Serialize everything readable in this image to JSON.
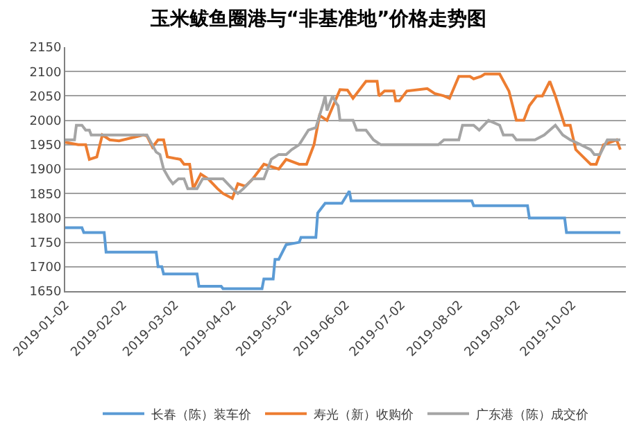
{
  "chart_data": {
    "type": "line",
    "title": "玉米鲅鱼圈港与“非基准地”价格走势图",
    "series": [
      {
        "name": "长春（陈）装车价",
        "color": "#5b9bd5",
        "x": [
          "2019-01-02",
          "2019-01-11",
          "2019-01-12",
          "2019-01-23",
          "2019-01-24",
          "2019-02-20",
          "2019-02-21",
          "2019-02-23",
          "2019-02-24",
          "2019-03-14",
          "2019-03-15",
          "2019-03-27",
          "2019-03-28",
          "2019-04-18",
          "2019-04-19",
          "2019-04-24",
          "2019-04-25",
          "2019-04-27",
          "2019-05-01",
          "2019-05-08",
          "2019-05-09",
          "2019-05-17",
          "2019-05-18",
          "2019-05-20",
          "2019-05-22",
          "2019-05-31",
          "2019-06-04",
          "2019-06-05",
          "2019-08-09",
          "2019-08-10",
          "2019-09-08",
          "2019-09-09",
          "2019-09-28",
          "2019-09-29",
          "2019-10-28"
        ],
        "values": [
          1780,
          1780,
          1770,
          1770,
          1730,
          1730,
          1700,
          1700,
          1685,
          1685,
          1660,
          1660,
          1655,
          1655,
          1675,
          1675,
          1715,
          1715,
          1745,
          1750,
          1760,
          1760,
          1810,
          1820,
          1830,
          1830,
          1855,
          1835,
          1835,
          1825,
          1825,
          1800,
          1800,
          1770,
          1770
        ]
      },
      {
        "name": "寿光（新）收购价",
        "color": "#ed7d31",
        "x": [
          "2019-01-02",
          "2019-01-09",
          "2019-01-13",
          "2019-01-15",
          "2019-01-19",
          "2019-01-22",
          "2019-01-26",
          "2019-01-31",
          "2019-02-13",
          "2019-02-15",
          "2019-02-18",
          "2019-02-21",
          "2019-02-24",
          "2019-02-26",
          "2019-03-05",
          "2019-03-07",
          "2019-03-10",
          "2019-03-12",
          "2019-03-16",
          "2019-03-20",
          "2019-03-25",
          "2019-03-28",
          "2019-04-02",
          "2019-04-05",
          "2019-04-09",
          "2019-04-13",
          "2019-04-19",
          "2019-04-27",
          "2019-05-01",
          "2019-05-08",
          "2019-05-12",
          "2019-05-16",
          "2019-05-19",
          "2019-05-23",
          "2019-05-30",
          "2019-06-03",
          "2019-06-06",
          "2019-06-13",
          "2019-06-19",
          "2019-06-20",
          "2019-06-23",
          "2019-06-28",
          "2019-06-29",
          "2019-07-01",
          "2019-07-05",
          "2019-07-16",
          "2019-07-20",
          "2019-07-25",
          "2019-07-28",
          "2019-08-02",
          "2019-08-08",
          "2019-08-10",
          "2019-08-14",
          "2019-08-16",
          "2019-08-24",
          "2019-08-29",
          "2019-09-02",
          "2019-09-06",
          "2019-09-09",
          "2019-09-13",
          "2019-09-16",
          "2019-09-20",
          "2019-09-23",
          "2019-09-28",
          "2019-10-01",
          "2019-10-04",
          "2019-10-12",
          "2019-10-15",
          "2019-10-19",
          "2019-10-26",
          "2019-10-28"
        ],
        "values": [
          1955,
          1950,
          1950,
          1920,
          1925,
          1970,
          1960,
          1958,
          1970,
          1968,
          1945,
          1960,
          1960,
          1925,
          1920,
          1910,
          1910,
          1860,
          1890,
          1880,
          1860,
          1850,
          1840,
          1870,
          1865,
          1880,
          1910,
          1900,
          1920,
          1910,
          1910,
          1950,
          2010,
          2000,
          2063,
          2062,
          2045,
          2080,
          2080,
          2050,
          2060,
          2060,
          2040,
          2040,
          2060,
          2065,
          2055,
          2050,
          2045,
          2090,
          2090,
          2085,
          2090,
          2095,
          2095,
          2060,
          2000,
          2000,
          2030,
          2050,
          2050,
          2080,
          2050,
          1990,
          1990,
          1940,
          1910,
          1910,
          1950,
          1960,
          1940
        ]
      },
      {
        "name": "广东港（陈）成交价",
        "color": "#a5a5a5",
        "x": [
          "2019-01-02",
          "2019-01-07",
          "2019-01-08",
          "2019-01-11",
          "2019-01-13",
          "2019-01-15",
          "2019-01-16",
          "2019-02-15",
          "2019-02-20",
          "2019-02-22",
          "2019-02-24",
          "2019-02-27",
          "2019-03-01",
          "2019-03-04",
          "2019-03-07",
          "2019-03-09",
          "2019-03-14",
          "2019-03-17",
          "2019-03-28",
          "2019-04-02",
          "2019-04-05",
          "2019-04-08",
          "2019-04-13",
          "2019-04-19",
          "2019-04-23",
          "2019-04-27",
          "2019-05-01",
          "2019-05-04",
          "2019-05-08",
          "2019-05-13",
          "2019-05-17",
          "2019-05-21",
          "2019-05-22",
          "2019-05-23",
          "2019-05-26",
          "2019-05-28",
          "2019-05-29",
          "2019-05-30",
          "2019-06-06",
          "2019-06-08",
          "2019-06-13",
          "2019-06-17",
          "2019-06-21",
          "2019-07-22",
          "2019-07-25",
          "2019-08-02",
          "2019-08-04",
          "2019-08-10",
          "2019-08-13",
          "2019-08-18",
          "2019-08-24",
          "2019-08-26",
          "2019-08-31",
          "2019-09-02",
          "2019-09-12",
          "2019-09-17",
          "2019-09-23",
          "2019-09-27",
          "2019-10-01",
          "2019-10-04",
          "2019-10-12",
          "2019-10-14",
          "2019-10-17",
          "2019-10-21",
          "2019-10-28"
        ],
        "values": [
          1960,
          1960,
          1990,
          1990,
          1980,
          1980,
          1970,
          1970,
          1935,
          1930,
          1900,
          1880,
          1870,
          1880,
          1880,
          1860,
          1860,
          1880,
          1880,
          1860,
          1850,
          1860,
          1880,
          1880,
          1920,
          1930,
          1930,
          1940,
          1950,
          1980,
          1985,
          2035,
          2050,
          2020,
          2050,
          2035,
          2030,
          2000,
          2000,
          1980,
          1980,
          1960,
          1950,
          1950,
          1960,
          1960,
          1990,
          1990,
          1980,
          2000,
          1990,
          1970,
          1970,
          1960,
          1960,
          1970,
          1990,
          1970,
          1960,
          1955,
          1940,
          1930,
          1930,
          1960,
          1960
        ]
      }
    ],
    "xlim": [
      "2019-01-02",
      "2019-10-31"
    ],
    "xticks": [
      "2019-01-02",
      "2019-02-02",
      "2019-03-02",
      "2019-04-02",
      "2019-05-02",
      "2019-06-02",
      "2019-07-02",
      "2019-08-02",
      "2019-09-02",
      "2019-10-02"
    ],
    "ylim": [
      1650,
      2150
    ],
    "yticks": [
      1650,
      1700,
      1750,
      1800,
      1850,
      1900,
      1950,
      2000,
      2050,
      2100,
      2150
    ],
    "grid": "y",
    "legend": "bottom",
    "marker": "none",
    "line_style": "solid"
  }
}
